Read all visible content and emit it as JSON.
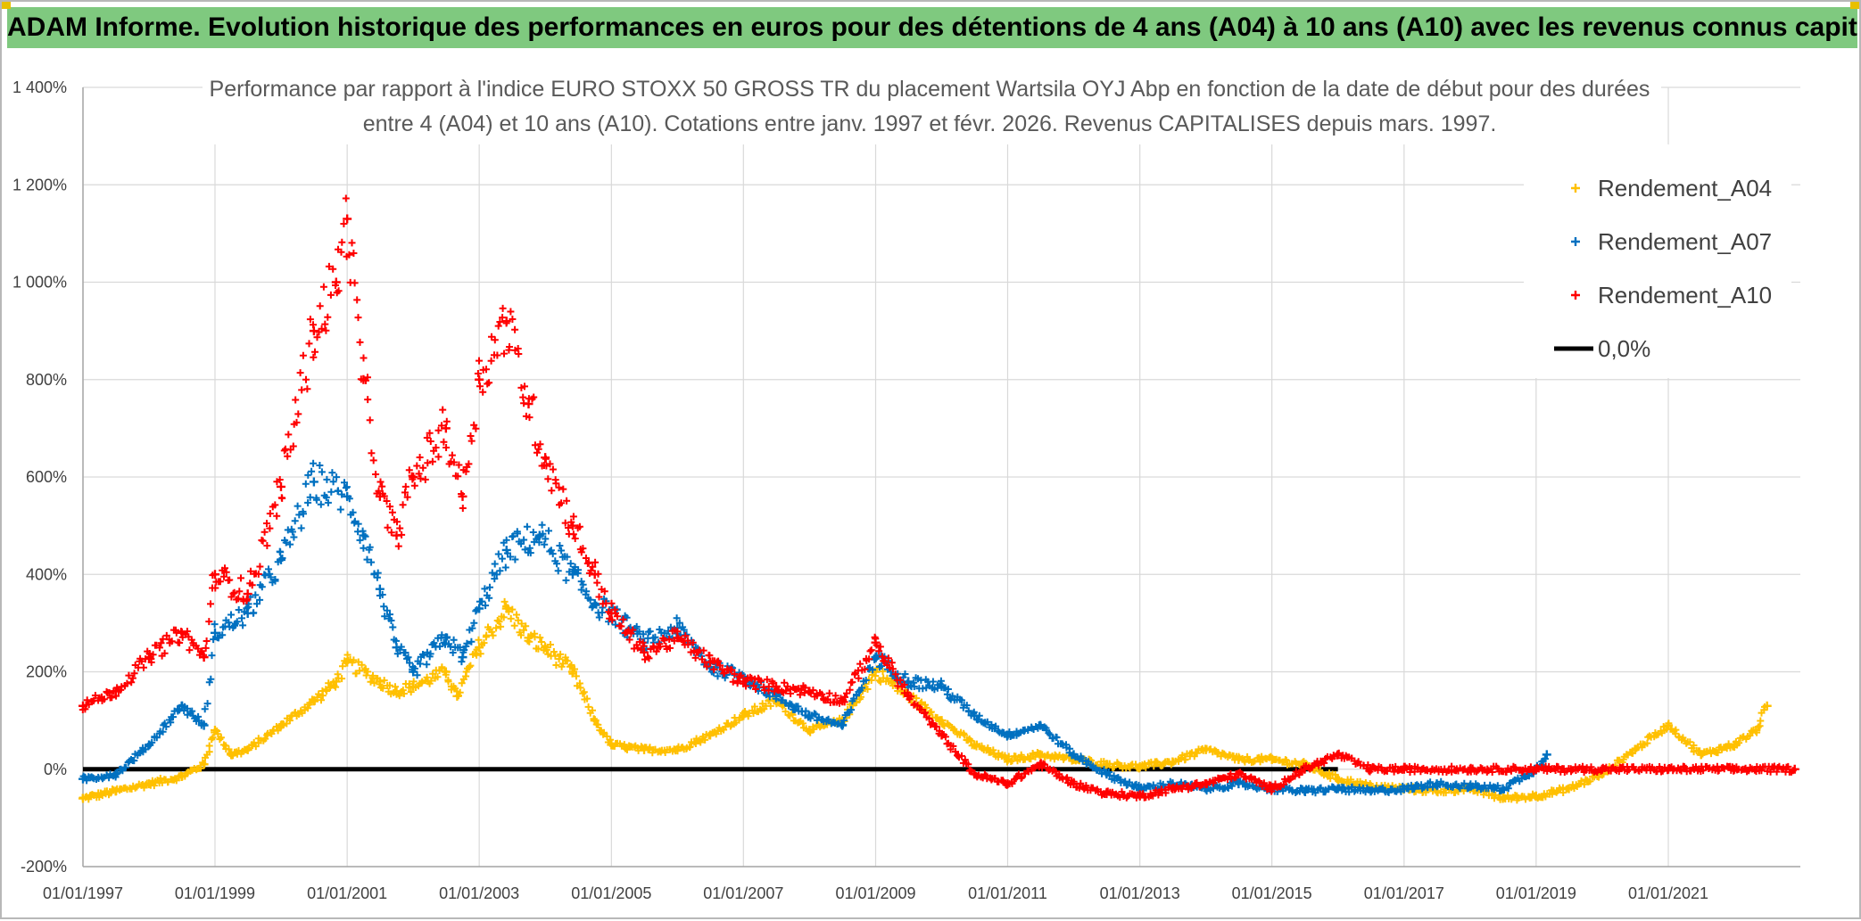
{
  "banner": {
    "text": "ADAM Informe. Evolution historique des performances en euros pour des détentions de 4 ans (A04) à 10 ans (A10) avec les revenus connus capitalisés",
    "bg_color": "#7fc97f"
  },
  "chart_data": {
    "type": "scatter",
    "title_lines": [
      "Performance  par rapport à l'indice EURO STOXX 50 GROSS TR  du placement Wartsila OYJ Abp en fonction de la date de début pour des durées",
      "entre 4 (A04) et 10 ans (A10). Cotations entre janv. 1997 et févr. 2026. Revenus CAPITALISES depuis mars. 1997."
    ],
    "x_axis": {
      "type": "date",
      "range": [
        "1997-01-01",
        "2023-01-01"
      ],
      "tick_labels": [
        "01/01/1997",
        "01/01/1999",
        "01/01/2001",
        "01/01/2003",
        "01/01/2005",
        "01/01/2007",
        "01/01/2009",
        "01/01/2011",
        "01/01/2013",
        "01/01/2015",
        "01/01/2017",
        "01/01/2019",
        "01/01/2021"
      ]
    },
    "y_axis": {
      "unit": "%",
      "range": [
        -200,
        1400
      ],
      "ticks": [
        -200,
        0,
        200,
        400,
        600,
        800,
        1000,
        1200,
        1400
      ],
      "tick_labels": [
        "-200%",
        "0%",
        "200%",
        "400%",
        "600%",
        "800%",
        "1 000%",
        "1 200%",
        "1 400%"
      ]
    },
    "grid": true,
    "legend_position": "top-right",
    "series": [
      {
        "name": "Rendement_A04",
        "color": "#ffc000",
        "marker": "plus",
        "points": [
          [
            "1997-01-01",
            -60
          ],
          [
            "1997-07-01",
            -45
          ],
          [
            "1998-01-01",
            -30
          ],
          [
            "1998-07-01",
            -15
          ],
          [
            "1998-11-01",
            10
          ],
          [
            "1999-01-01",
            80
          ],
          [
            "1999-04-01",
            30
          ],
          [
            "1999-07-01",
            40
          ],
          [
            "2000-01-01",
            90
          ],
          [
            "2000-07-01",
            140
          ],
          [
            "2000-11-01",
            180
          ],
          [
            "2001-01-01",
            220
          ],
          [
            "2001-07-01",
            180
          ],
          [
            "2001-10-01",
            160
          ],
          [
            "2002-01-01",
            170
          ],
          [
            "2002-07-01",
            200
          ],
          [
            "2002-09-01",
            150
          ],
          [
            "2003-01-01",
            250
          ],
          [
            "2003-06-01",
            330
          ],
          [
            "2003-10-01",
            270
          ],
          [
            "2004-01-01",
            250
          ],
          [
            "2004-06-01",
            200
          ],
          [
            "2004-10-01",
            100
          ],
          [
            "2005-01-01",
            50
          ],
          [
            "2005-07-01",
            40
          ],
          [
            "2006-01-01",
            40
          ],
          [
            "2006-07-01",
            70
          ],
          [
            "2007-01-01",
            110
          ],
          [
            "2007-07-01",
            140
          ],
          [
            "2008-01-01",
            80
          ],
          [
            "2008-07-01",
            100
          ],
          [
            "2009-01-01",
            200
          ],
          [
            "2009-07-01",
            150
          ],
          [
            "2010-01-01",
            100
          ],
          [
            "2010-07-01",
            50
          ],
          [
            "2011-01-01",
            20
          ],
          [
            "2011-07-01",
            30
          ],
          [
            "2012-01-01",
            20
          ],
          [
            "2012-07-01",
            10
          ],
          [
            "2013-01-01",
            5
          ],
          [
            "2013-07-01",
            15
          ],
          [
            "2014-01-01",
            40
          ],
          [
            "2014-07-01",
            20
          ],
          [
            "2015-01-01",
            20
          ],
          [
            "2015-07-01",
            10
          ],
          [
            "2016-01-01",
            -20
          ],
          [
            "2016-07-01",
            -35
          ],
          [
            "2017-01-01",
            -40
          ],
          [
            "2017-07-01",
            -45
          ],
          [
            "2018-01-01",
            -40
          ],
          [
            "2018-07-01",
            -60
          ],
          [
            "2019-01-01",
            -55
          ],
          [
            "2019-07-01",
            -40
          ],
          [
            "2020-01-01",
            -10
          ],
          [
            "2020-07-01",
            40
          ],
          [
            "2021-01-01",
            90
          ],
          [
            "2021-07-01",
            30
          ],
          [
            "2022-01-01",
            50
          ],
          [
            "2022-05-01",
            80
          ],
          [
            "2022-07-01",
            130
          ]
        ]
      },
      {
        "name": "Rendement_A07",
        "color": "#0070c0",
        "marker": "plus",
        "points": [
          [
            "1997-01-01",
            -20
          ],
          [
            "1997-07-01",
            -10
          ],
          [
            "1998-01-01",
            50
          ],
          [
            "1998-07-01",
            130
          ],
          [
            "1998-11-01",
            90
          ],
          [
            "1999-01-01",
            280
          ],
          [
            "1999-07-01",
            320
          ],
          [
            "2000-01-01",
            430
          ],
          [
            "2000-07-01",
            590
          ],
          [
            "2001-01-01",
            560
          ],
          [
            "2001-04-01",
            480
          ],
          [
            "2001-07-01",
            370
          ],
          [
            "2001-10-01",
            250
          ],
          [
            "2002-01-01",
            200
          ],
          [
            "2002-07-01",
            270
          ],
          [
            "2002-10-01",
            230
          ],
          [
            "2003-01-01",
            330
          ],
          [
            "2003-06-01",
            450
          ],
          [
            "2003-12-01",
            480
          ],
          [
            "2004-06-01",
            400
          ],
          [
            "2004-10-01",
            340
          ],
          [
            "2005-01-01",
            320
          ],
          [
            "2005-07-01",
            260
          ],
          [
            "2006-01-01",
            290
          ],
          [
            "2006-07-01",
            210
          ],
          [
            "2007-01-01",
            190
          ],
          [
            "2007-07-01",
            150
          ],
          [
            "2008-01-01",
            110
          ],
          [
            "2008-07-01",
            90
          ],
          [
            "2009-01-01",
            230
          ],
          [
            "2009-07-01",
            180
          ],
          [
            "2010-01-01",
            170
          ],
          [
            "2010-07-01",
            110
          ],
          [
            "2011-01-01",
            70
          ],
          [
            "2011-07-01",
            90
          ],
          [
            "2012-01-01",
            30
          ],
          [
            "2012-07-01",
            -10
          ],
          [
            "2013-01-01",
            -40
          ],
          [
            "2013-07-01",
            -30
          ],
          [
            "2014-01-01",
            -40
          ],
          [
            "2014-07-01",
            -30
          ],
          [
            "2015-01-01",
            -40
          ],
          [
            "2015-07-01",
            -45
          ],
          [
            "2016-01-01",
            -40
          ],
          [
            "2016-07-01",
            -45
          ],
          [
            "2017-01-01",
            -40
          ],
          [
            "2017-07-01",
            -30
          ],
          [
            "2018-01-01",
            -35
          ],
          [
            "2018-07-01",
            -40
          ],
          [
            "2019-01-01",
            0
          ],
          [
            "2019-03-01",
            30
          ]
        ]
      },
      {
        "name": "Rendement_A10",
        "color": "#ff0000",
        "marker": "plus",
        "points": [
          [
            "1997-01-01",
            130
          ],
          [
            "1997-07-01",
            160
          ],
          [
            "1998-01-01",
            230
          ],
          [
            "1998-07-01",
            280
          ],
          [
            "1998-11-01",
            230
          ],
          [
            "1999-01-01",
            400
          ],
          [
            "1999-07-01",
            360
          ],
          [
            "2000-01-01",
            580
          ],
          [
            "2000-07-01",
            900
          ],
          [
            "2000-11-01",
            1000
          ],
          [
            "2001-01-01",
            1130
          ],
          [
            "2001-04-01",
            800
          ],
          [
            "2001-07-01",
            560
          ],
          [
            "2001-10-01",
            480
          ],
          [
            "2002-01-01",
            600
          ],
          [
            "2002-07-01",
            700
          ],
          [
            "2002-10-01",
            560
          ],
          [
            "2003-01-01",
            800
          ],
          [
            "2003-06-01",
            920
          ],
          [
            "2003-10-01",
            750
          ],
          [
            "2004-01-01",
            640
          ],
          [
            "2004-06-01",
            500
          ],
          [
            "2004-10-01",
            400
          ],
          [
            "2005-01-01",
            320
          ],
          [
            "2005-07-01",
            240
          ],
          [
            "2006-01-01",
            270
          ],
          [
            "2006-07-01",
            220
          ],
          [
            "2007-01-01",
            180
          ],
          [
            "2007-07-01",
            170
          ],
          [
            "2008-01-01",
            160
          ],
          [
            "2008-07-01",
            140
          ],
          [
            "2009-01-01",
            260
          ],
          [
            "2009-07-01",
            150
          ],
          [
            "2010-01-01",
            70
          ],
          [
            "2010-07-01",
            -10
          ],
          [
            "2011-01-01",
            -30
          ],
          [
            "2011-07-01",
            10
          ],
          [
            "2012-01-01",
            -30
          ],
          [
            "2012-07-01",
            -50
          ],
          [
            "2013-01-01",
            -55
          ],
          [
            "2013-07-01",
            -40
          ],
          [
            "2014-01-01",
            -30
          ],
          [
            "2014-07-01",
            -10
          ],
          [
            "2015-01-01",
            -40
          ],
          [
            "2015-07-01",
            0
          ],
          [
            "2016-01-01",
            30
          ],
          [
            "2016-07-01",
            0
          ],
          [
            "2017-01-01",
            0
          ],
          [
            "2018-01-01",
            0
          ],
          [
            "2019-01-01",
            0
          ],
          [
            "2020-01-01",
            0
          ],
          [
            "2021-01-01",
            0
          ],
          [
            "2022-01-01",
            0
          ],
          [
            "2022-12-01",
            0
          ]
        ]
      }
    ],
    "reference_line": {
      "name": "0,0%",
      "value": 0,
      "color": "#000000"
    }
  }
}
